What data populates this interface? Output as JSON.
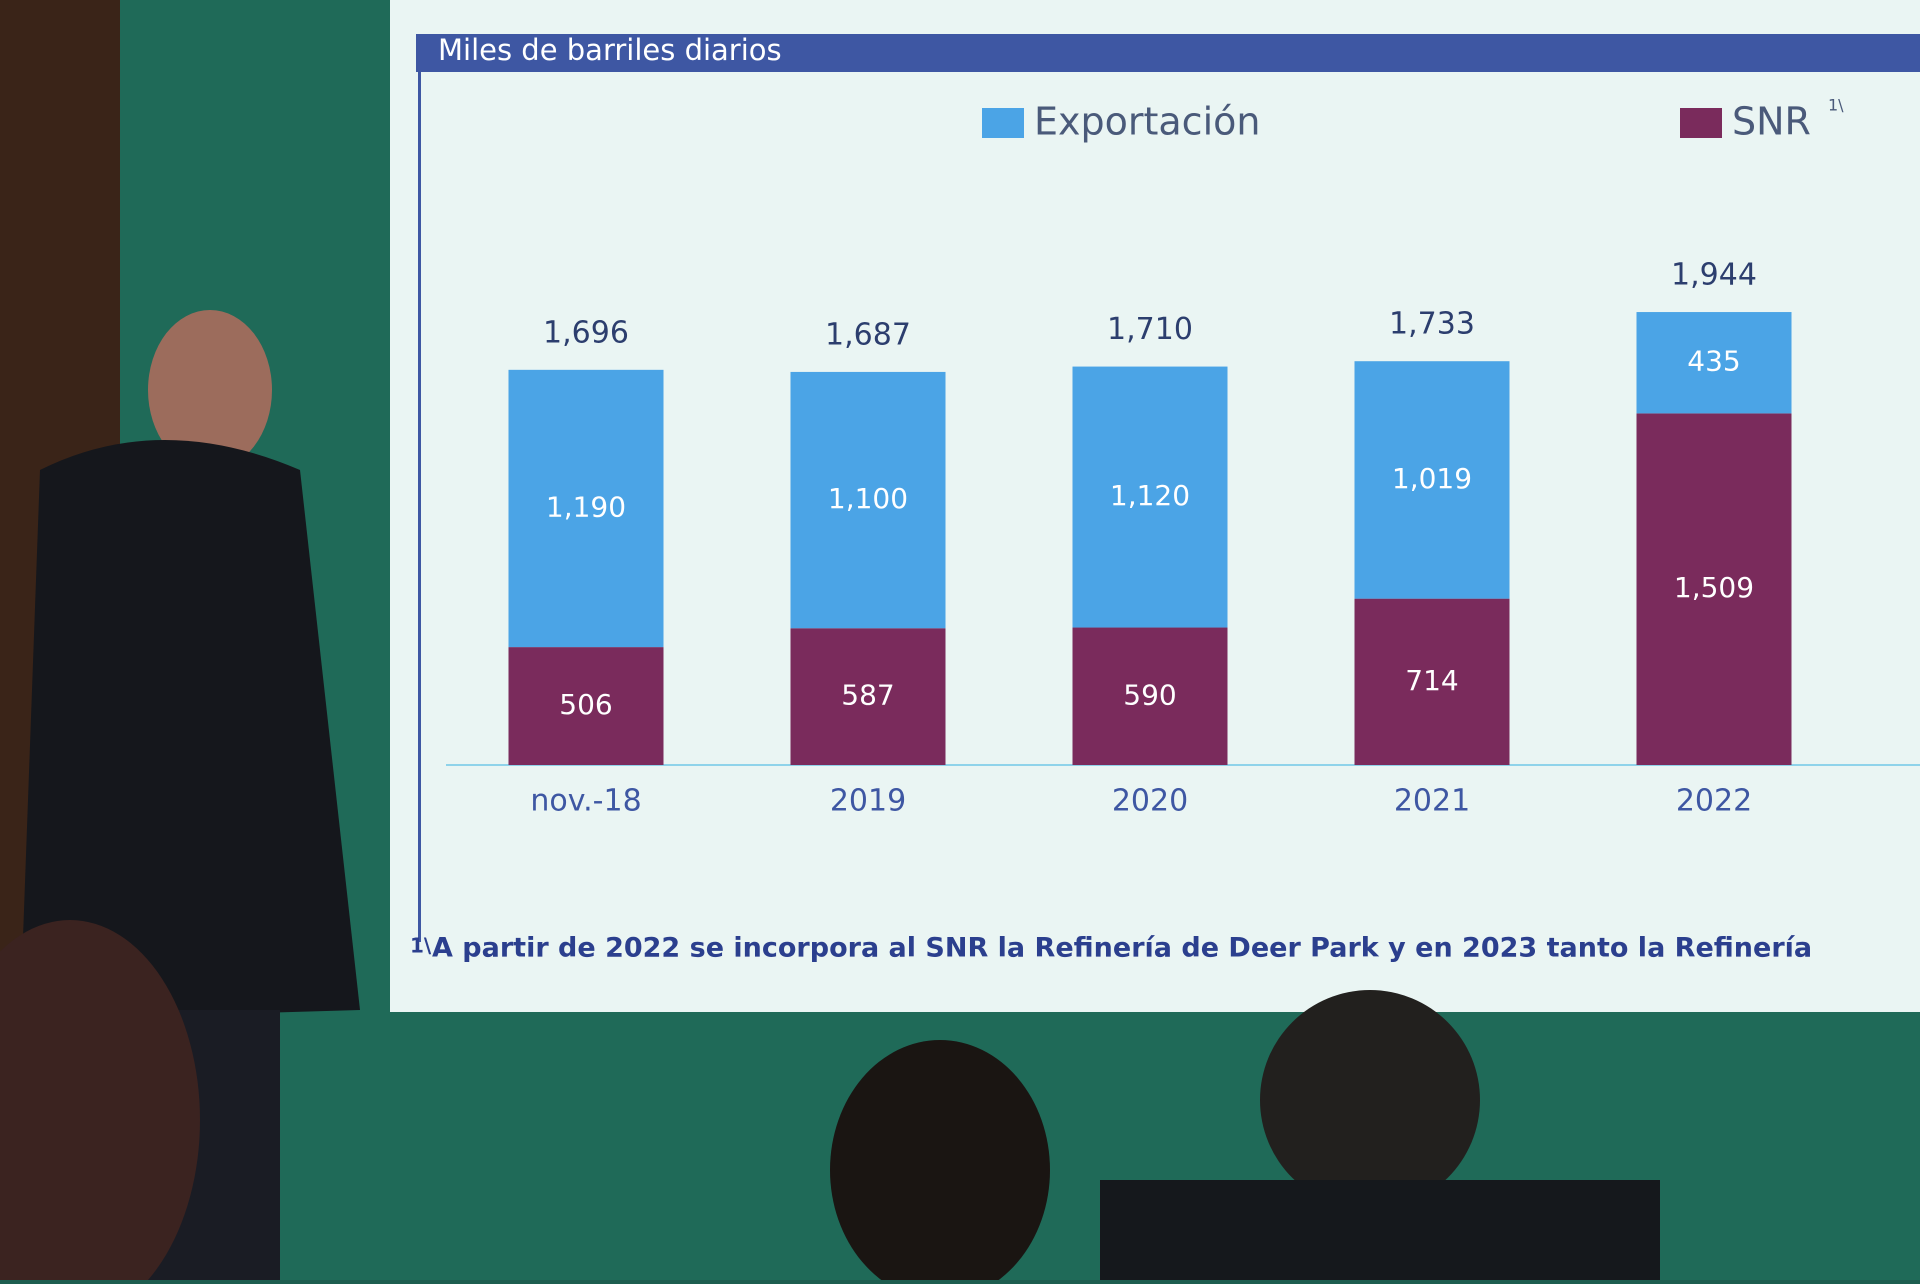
{
  "chart_data": {
    "type": "stacked-bar",
    "title": "Miles de barriles diarios",
    "categories": [
      "nov.-18",
      "2019",
      "2020",
      "2021",
      "2022"
    ],
    "series": [
      {
        "name": "SNR",
        "name_note": "1\\",
        "color": "#7a2b5c",
        "values": [
          506,
          587,
          590,
          714,
          1509
        ],
        "value_labels": [
          "506",
          "587",
          "590",
          "714",
          "1,509"
        ]
      },
      {
        "name": "Exportación",
        "color": "#4ba4e6",
        "values": [
          1190,
          1100,
          1120,
          1019,
          435
        ],
        "value_labels": [
          "1,190",
          "1,100",
          "1,120",
          "1,019",
          "435"
        ]
      }
    ],
    "totals": [
      1696,
      1687,
      1710,
      1733,
      1944
    ],
    "total_labels": [
      "1,696",
      "1,687",
      "1,710",
      "1,733",
      "1,944"
    ],
    "footnote": {
      "marker": "1\\",
      "text": "A partir de 2022 se incorpora al SNR la Refinería de Deer Park y en 2023 tanto la Refinería"
    }
  }
}
